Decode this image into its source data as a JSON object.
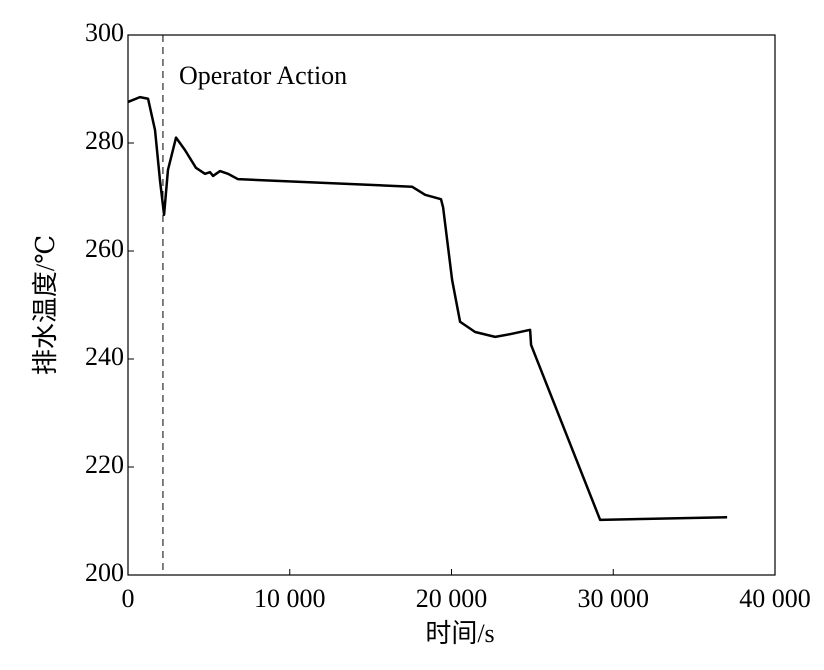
{
  "chart_data": {
    "type": "line",
    "x_label": "时间/s",
    "y_label": "排水温度/℃",
    "annotation": "Operator Action",
    "annotation_x": 2160,
    "x": [
      0,
      740,
      1240,
      1670,
      1980,
      2230,
      2470,
      2970,
      3520,
      4200,
      4760,
      5070,
      5260,
      5690,
      6180,
      6800,
      17560,
      18370,
      19350,
      19480,
      20040,
      20530,
      21460,
      22700,
      23620,
      24860,
      24920,
      29190,
      37040
    ],
    "series": [
      {
        "name": "排水温度",
        "color": "#000000",
        "values": [
          287.6,
          288.5,
          288.2,
          282.4,
          273,
          266.7,
          275,
          281,
          278.7,
          275.4,
          274.3,
          274.6,
          273.9,
          274.8,
          274.3,
          273.3,
          271.9,
          270.4,
          269.6,
          268.1,
          254.6,
          246.9,
          245,
          244.1,
          244.6,
          245.4,
          242.6,
          210.2,
          210.7
        ]
      }
    ],
    "xlim": [
      0,
      40000
    ],
    "xticks": [
      0,
      {
        "value": 10000,
        "label": "10 000"
      },
      {
        "value": 20000,
        "label": "20 000"
      },
      {
        "value": 30000,
        "label": "30 000"
      },
      {
        "value": 40000,
        "label": "40 000"
      }
    ],
    "ylim": [
      200,
      300
    ],
    "yticks": [
      200,
      220,
      240,
      260,
      280,
      300
    ],
    "grid": false
  }
}
